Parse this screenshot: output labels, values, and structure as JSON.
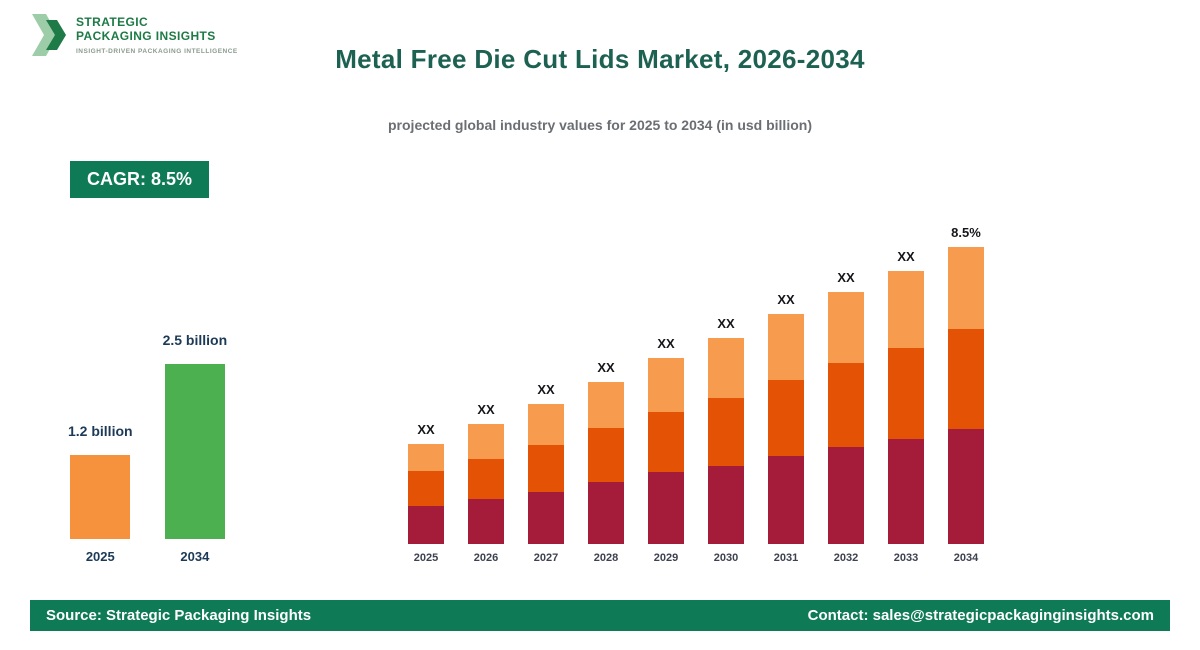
{
  "brand": {
    "line1": "STRATEGIC",
    "line2": "PACKAGING INSIGHTS",
    "tagline": "INSIGHT-DRIVEN PACKAGING INTELLIGENCE"
  },
  "header": {
    "title": "Metal Free Die Cut Lids Market, 2026-2034",
    "subtitle": "projected global industry values for 2025 to 2034 (in usd billion)"
  },
  "cagr_badge": "CAGR: 8.5%",
  "colors": {
    "brand_green_dark": "#1E7A46",
    "brand_green_light": "#9CCDA8",
    "title_green": "#1D6152",
    "badge_bg": "#0E7A56",
    "footer_bg": "#0E7A56",
    "value_label_navy": "#1C3A57",
    "summary_bar_2025": "#F6923E",
    "summary_bar_2034": "#4CAF50",
    "stack_bottom": "#A41C3A",
    "stack_middle": "#E35205",
    "stack_top": "#F79B4E"
  },
  "chart_data": [
    {
      "type": "bar",
      "name": "growth-summary",
      "title": "",
      "categories": [
        "2025",
        "2034"
      ],
      "values": [
        1.2,
        2.5
      ],
      "value_labels": [
        "1.2 billion",
        "2.5 billion"
      ],
      "bar_colors": [
        "#F6923E",
        "#4CAF50"
      ],
      "unit": "usd billion",
      "grid": false,
      "legend": false
    },
    {
      "type": "bar",
      "name": "stacked-projection",
      "stacked": true,
      "title": "Metal Free Die Cut Lids Market, 2026-2034",
      "categories": [
        "2025",
        "2026",
        "2027",
        "2028",
        "2029",
        "2030",
        "2031",
        "2032",
        "2033",
        "2034"
      ],
      "series": [
        {
          "name": "segment-bottom",
          "color": "#A41C3A",
          "values": [
            38,
            45,
            52,
            62,
            72,
            78,
            88,
            97,
            105,
            115
          ]
        },
        {
          "name": "segment-middle",
          "color": "#E35205",
          "values": [
            35,
            40,
            47,
            54,
            60,
            68,
            76,
            84,
            91,
            100
          ]
        },
        {
          "name": "segment-top",
          "color": "#F79B4E",
          "values": [
            27,
            35,
            41,
            46,
            54,
            60,
            66,
            71,
            77,
            82
          ]
        }
      ],
      "bar_labels": [
        "XX",
        "XX",
        "XX",
        "XX",
        "XX",
        "XX",
        "XX",
        "XX",
        "XX",
        "8.5%"
      ],
      "unit": "relative (numeric values masked as XX in graphic)",
      "grid": false,
      "legend": false
    }
  ],
  "footer": {
    "source": "Source: Strategic Packaging Insights",
    "contact": "Contact: sales@strategicpackaginginsights.com"
  }
}
